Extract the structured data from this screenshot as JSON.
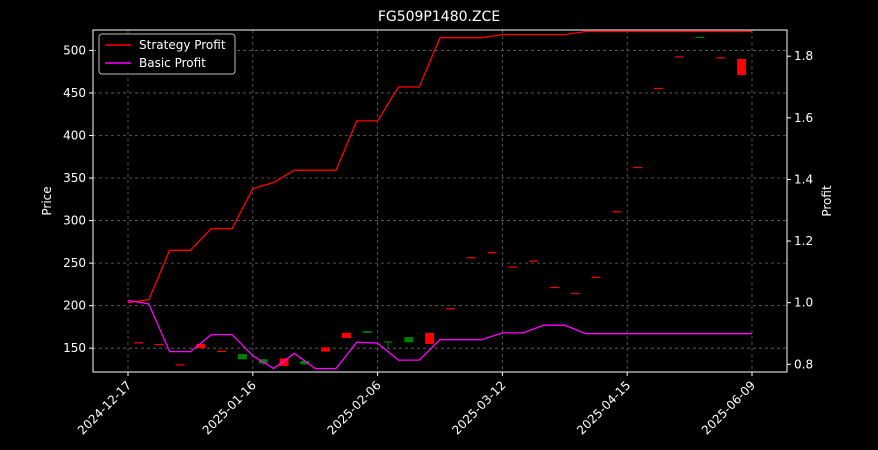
{
  "chart_data": {
    "type": "line",
    "title": "FG509P1480.ZCE",
    "ylabel": "Price",
    "ylabel_right": "Profit",
    "x_tick_labels": [
      "2024-12-17",
      "2025-01-16",
      "2025-02-06",
      "2025-03-12",
      "2025-04-15",
      "2025-06-09"
    ],
    "ylim": [
      122,
      524
    ],
    "yticks": [
      150,
      200,
      250,
      300,
      350,
      400,
      450,
      500
    ],
    "ylim_right": [
      0.775,
      1.885
    ],
    "yticks_right": [
      0.8,
      1.0,
      1.2,
      1.4,
      1.6,
      1.8
    ],
    "grid": true,
    "legend_position": "upper-left",
    "series": [
      {
        "name": "Strategy Profit",
        "axis": "right",
        "color": "#ff0000",
        "values": [
          1.0,
          1.01,
          1.17,
          1.17,
          1.24,
          1.24,
          1.37,
          1.39,
          1.43,
          1.43,
          1.43,
          1.59,
          1.59,
          1.7,
          1.7,
          1.86,
          1.86,
          1.86,
          1.87,
          1.87,
          1.87,
          1.87,
          1.88,
          1.88,
          1.88,
          1.88,
          1.88,
          1.88,
          1.88,
          1.88,
          1.88
        ]
      },
      {
        "name": "Basic Profit",
        "axis": "left",
        "color": "#ff00ff",
        "values": [
          206,
          202,
          146,
          146,
          166,
          166,
          141,
          126,
          144,
          126,
          126,
          157,
          156,
          136,
          136,
          160,
          160,
          160,
          168,
          168,
          177,
          177,
          167,
          167,
          167,
          167,
          167,
          167,
          167,
          167,
          167
        ]
      }
    ],
    "candles": [
      {
        "o": 157,
        "c": 157,
        "h": 157,
        "l": 157
      },
      {
        "o": 155,
        "c": 155,
        "h": 155,
        "l": 155
      },
      {
        "o": 131,
        "c": 131,
        "h": 131,
        "l": 131
      },
      {
        "o": 155,
        "c": 150,
        "h": 155,
        "l": 150
      },
      {
        "o": 147,
        "c": 147,
        "h": 147,
        "l": 147
      },
      {
        "o": 137,
        "c": 143,
        "h": 143,
        "l": 137
      },
      {
        "o": 132,
        "c": 137,
        "h": 137,
        "l": 130
      },
      {
        "o": 138,
        "c": 129,
        "h": 138,
        "l": 129
      },
      {
        "o": 131,
        "c": 135,
        "h": 136,
        "l": 131
      },
      {
        "o": 151,
        "c": 146,
        "h": 151,
        "l": 146
      },
      {
        "o": 168,
        "c": 162,
        "h": 168,
        "l": 162
      },
      {
        "o": 168,
        "c": 170,
        "h": 170,
        "l": 168
      },
      {
        "o": 157,
        "c": 158,
        "h": 158,
        "l": 151
      },
      {
        "o": 157,
        "c": 163,
        "h": 163,
        "l": 157
      },
      {
        "o": 168,
        "c": 155,
        "h": 168,
        "l": 155
      },
      {
        "o": 197,
        "c": 197,
        "h": 197,
        "l": 197
      },
      {
        "o": 257,
        "c": 257,
        "h": 257,
        "l": 257
      },
      {
        "o": 263,
        "c": 263,
        "h": 263,
        "l": 263
      },
      {
        "o": 246,
        "c": 246,
        "h": 246,
        "l": 246
      },
      {
        "o": 253,
        "c": 253,
        "h": 253,
        "l": 253
      },
      {
        "o": 222,
        "c": 222,
        "h": 222,
        "l": 222
      },
      {
        "o": 215,
        "c": 215,
        "h": 215,
        "l": 215
      },
      {
        "o": 234,
        "c": 234,
        "h": 234,
        "l": 234
      },
      {
        "o": 311,
        "c": 311,
        "h": 311,
        "l": 311
      },
      {
        "o": 363,
        "c": 363,
        "h": 363,
        "l": 363
      },
      {
        "o": 456,
        "c": 456,
        "h": 456,
        "l": 456
      },
      {
        "o": 493,
        "c": 493,
        "h": 493,
        "l": 493
      },
      {
        "o": 515,
        "c": 516,
        "h": 516,
        "l": 515
      },
      {
        "o": 492,
        "c": 492,
        "h": 492,
        "l": 492
      },
      {
        "o": 490,
        "c": 471,
        "h": 490,
        "l": 471
      }
    ],
    "candle_up_color": "#008000",
    "candle_down_color": "#ff0000",
    "candle_doji_color": "#ff0000"
  }
}
